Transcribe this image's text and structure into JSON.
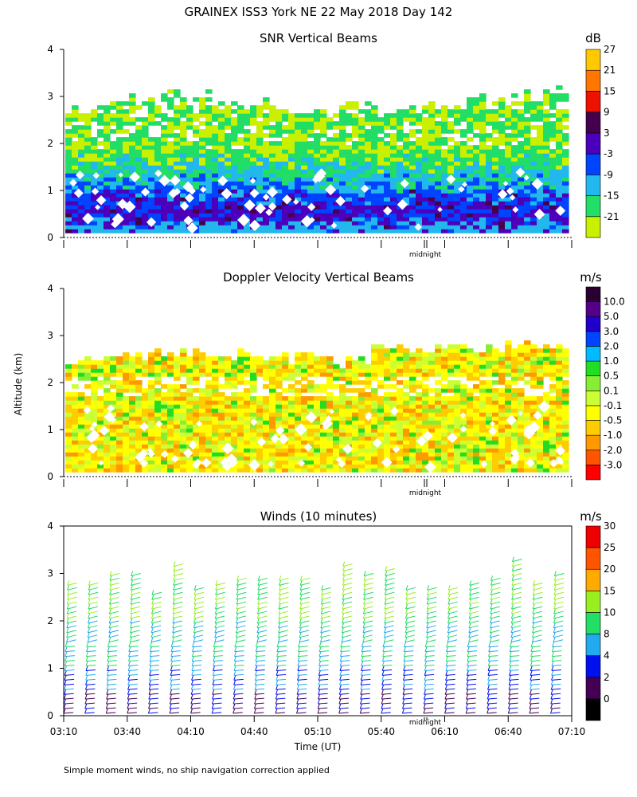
{
  "figure_title": "GRAINEX ISS3 York NE  22 May 2018 Day 142",
  "y_axis_label": "Altitude (km)",
  "x_axis_label": "Time (UT)",
  "midnight_label": "midnight",
  "footnote": "Simple moment winds, no ship navigation correction applied",
  "colors": {
    "snr_scale": [
      "#c8f000",
      "#22dd66",
      "#22b8ee",
      "#0044ff",
      "#4c00bb",
      "#45004d",
      "#ee1100",
      "#ff7700",
      "#ffc800"
    ],
    "vel_scale": [
      "#ff0000",
      "#ff5500",
      "#ff9900",
      "#ffcc00",
      "#ffff00",
      "#ccff33",
      "#88ee33",
      "#22dd22",
      "#00bbff",
      "#0044ff",
      "#2200cc",
      "#550088",
      "#2a0030"
    ],
    "wind_scale": [
      "#000000",
      "#440055",
      "#0011ee",
      "#22aaee",
      "#22dd66",
      "#99ee22",
      "#ffaa00",
      "#ff5500",
      "#ee0000"
    ]
  },
  "chart_data": [
    {
      "type": "heatmap",
      "title": "SNR Vertical Beams",
      "units": "dB",
      "ylim": [
        0,
        4
      ],
      "y_ticks": [
        "0",
        "1",
        "2",
        "3",
        "4"
      ],
      "x_range": [
        "03:10",
        "07:10"
      ],
      "colorbar_labels": [
        "-21",
        "-15",
        "-9",
        "-3",
        "3",
        "9",
        "15",
        "21",
        "27"
      ],
      "profile": [
        {
          "altitude_km": 0.5,
          "snr_db": 3
        },
        {
          "altitude_km": 1.0,
          "snr_db": -3
        },
        {
          "altitude_km": 1.5,
          "snr_db": -9
        },
        {
          "altitude_km": 2.0,
          "snr_db": -15
        },
        {
          "altitude_km": 2.5,
          "snr_db": -15
        },
        {
          "altitude_km": 3.0,
          "snr_db": -21
        }
      ]
    },
    {
      "type": "heatmap",
      "title": "Doppler Velocity Vertical Beams",
      "units": "m/s",
      "ylim": [
        0,
        4
      ],
      "y_ticks": [
        "0",
        "1",
        "2",
        "3",
        "4"
      ],
      "x_range": [
        "03:10",
        "07:10"
      ],
      "colorbar_labels": [
        "-3.0",
        "-2.0",
        "-1.0",
        "-0.5",
        "-0.1",
        "0.1",
        "0.5",
        "1.0",
        "2.0",
        "3.0",
        "5.0",
        "10.0"
      ],
      "profile": [
        {
          "altitude_km": 0.5,
          "velocity_ms": 0.1
        },
        {
          "altitude_km": 1.0,
          "velocity_ms": -0.1
        },
        {
          "altitude_km": 1.5,
          "velocity_ms": -0.1
        },
        {
          "altitude_km": 2.0,
          "velocity_ms": -0.5
        },
        {
          "altitude_km": 2.5,
          "velocity_ms": 0.1
        }
      ]
    },
    {
      "type": "scatter",
      "title": "Winds (10 minutes)",
      "units": "m/s",
      "ylim": [
        0,
        4
      ],
      "y_ticks": [
        "0",
        "1",
        "2",
        "3",
        "4"
      ],
      "x_ticks": [
        "03:10",
        "03:40",
        "04:10",
        "04:40",
        "05:10",
        "05:40",
        "06:10",
        "06:40",
        "07:10"
      ],
      "colorbar_labels": [
        "0",
        "2",
        "4",
        "8",
        "10",
        "15",
        "20",
        "25",
        "30"
      ],
      "profile_times": [
        "03:10",
        "03:20",
        "03:30",
        "03:40",
        "03:50",
        "04:00",
        "04:10",
        "04:20",
        "04:30",
        "04:40",
        "04:50",
        "05:00",
        "05:10",
        "05:20",
        "05:30",
        "05:40",
        "05:50",
        "06:00",
        "06:10",
        "06:20",
        "06:30",
        "06:40",
        "06:50",
        "07:00"
      ],
      "speed_profile": [
        {
          "altitude_km": 0.25,
          "speed_ms": 4
        },
        {
          "altitude_km": 0.75,
          "speed_ms": 8
        },
        {
          "altitude_km": 1.25,
          "speed_ms": 10
        },
        {
          "altitude_km": 1.75,
          "speed_ms": 10
        },
        {
          "altitude_km": 2.25,
          "speed_ms": 15
        },
        {
          "altitude_km": 2.75,
          "speed_ms": 15
        },
        {
          "altitude_km": 3.25,
          "speed_ms": 15
        }
      ]
    }
  ]
}
